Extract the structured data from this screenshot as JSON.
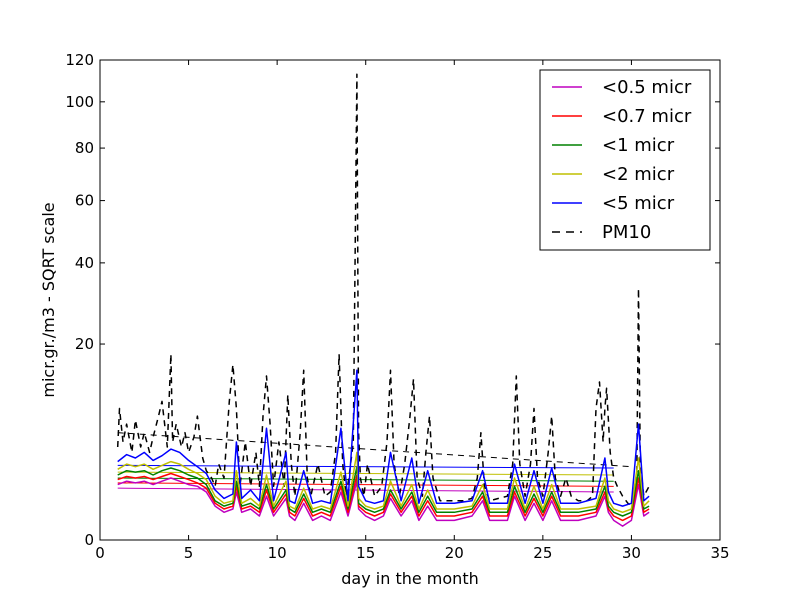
{
  "chart_data": {
    "type": "line",
    "xlabel": "day in the month",
    "ylabel": "micr.gr./m3 - SQRT scale",
    "xlim": [
      0,
      35
    ],
    "ylim": [
      0,
      120
    ],
    "y_scale": "sqrt",
    "x_ticks": [
      0,
      5,
      10,
      15,
      20,
      25,
      30,
      35
    ],
    "y_ticks": [
      0,
      20,
      40,
      60,
      80,
      100,
      120
    ],
    "grid": false,
    "legend_position": "top-right",
    "series": [
      {
        "name": "<0.5 micr",
        "color": "#bf00bf",
        "style": "solid",
        "x": [
          1.0,
          1.5,
          2.0,
          2.5,
          3.0,
          3.5,
          4.0,
          4.5,
          5.0,
          5.5,
          6.0,
          6.5,
          7.0,
          7.5,
          7.7,
          8.0,
          8.5,
          9.0,
          9.4,
          9.8,
          10.5,
          10.7,
          11.0,
          11.5,
          12.0,
          12.5,
          13.0,
          13.6,
          14.0,
          14.5,
          14.6,
          15.0,
          15.5,
          16.0,
          16.4,
          17.0,
          17.6,
          18.0,
          18.5,
          19.0,
          20.0,
          21.0,
          21.6,
          22.0,
          23.0,
          23.4,
          24.0,
          24.5,
          25.0,
          25.5,
          26.0,
          27.0,
          28.0,
          28.5,
          28.7,
          29.0,
          29.5,
          30.0,
          30.4,
          30.7,
          31.0
        ],
        "y": [
          1.6,
          1.8,
          1.7,
          1.8,
          1.6,
          1.8,
          2.0,
          1.8,
          1.6,
          1.5,
          1.2,
          0.6,
          0.4,
          0.5,
          1.2,
          0.4,
          0.5,
          0.3,
          1.0,
          0.3,
          0.9,
          0.3,
          0.2,
          0.7,
          0.2,
          0.3,
          0.2,
          1.2,
          0.3,
          1.8,
          0.5,
          0.3,
          0.2,
          0.3,
          0.9,
          0.3,
          0.8,
          0.2,
          0.6,
          0.2,
          0.2,
          0.3,
          0.8,
          0.2,
          0.2,
          1.0,
          0.2,
          0.7,
          0.2,
          0.8,
          0.2,
          0.2,
          0.3,
          1.0,
          0.4,
          0.2,
          0.1,
          0.2,
          1.6,
          0.3,
          0.4
        ]
      },
      {
        "name": "<0.7 micr",
        "color": "#ff0000",
        "style": "solid",
        "x": [
          1.0,
          1.5,
          2.0,
          2.5,
          3.0,
          3.5,
          4.0,
          4.5,
          5.0,
          5.5,
          6.0,
          6.5,
          7.0,
          7.5,
          7.7,
          8.0,
          8.5,
          9.0,
          9.4,
          9.8,
          10.5,
          10.7,
          11.0,
          11.5,
          12.0,
          12.5,
          13.0,
          13.6,
          14.0,
          14.5,
          14.6,
          15.0,
          15.5,
          16.0,
          16.4,
          17.0,
          17.6,
          18.0,
          18.5,
          19.0,
          20.0,
          21.0,
          21.6,
          22.0,
          23.0,
          23.4,
          24.0,
          24.5,
          25.0,
          25.5,
          26.0,
          27.0,
          28.0,
          28.5,
          28.7,
          29.0,
          29.5,
          30.0,
          30.4,
          30.7,
          31.0
        ],
        "y": [
          1.9,
          2.1,
          2.0,
          2.1,
          1.9,
          2.1,
          2.3,
          2.1,
          1.9,
          1.7,
          1.4,
          0.7,
          0.5,
          0.6,
          1.5,
          0.5,
          0.6,
          0.4,
          1.3,
          0.4,
          1.1,
          0.4,
          0.3,
          0.9,
          0.3,
          0.4,
          0.3,
          1.5,
          0.4,
          2.2,
          0.6,
          0.4,
          0.3,
          0.4,
          1.1,
          0.4,
          1.0,
          0.3,
          0.8,
          0.3,
          0.3,
          0.4,
          1.0,
          0.3,
          0.3,
          1.2,
          0.3,
          0.9,
          0.3,
          1.0,
          0.3,
          0.3,
          0.4,
          1.2,
          0.5,
          0.3,
          0.2,
          0.3,
          2.0,
          0.4,
          0.5
        ]
      },
      {
        "name": "<1 micr",
        "color": "#008000",
        "style": "solid",
        "x": [
          1.0,
          1.5,
          2.0,
          2.5,
          3.0,
          3.5,
          4.0,
          4.5,
          5.0,
          5.5,
          6.0,
          6.5,
          7.0,
          7.5,
          7.7,
          8.0,
          8.5,
          9.0,
          9.4,
          9.8,
          10.5,
          10.7,
          11.0,
          11.5,
          12.0,
          12.5,
          13.0,
          13.6,
          14.0,
          14.5,
          14.6,
          15.0,
          15.5,
          16.0,
          16.4,
          17.0,
          17.6,
          18.0,
          18.5,
          19.0,
          20.0,
          21.0,
          21.6,
          22.0,
          23.0,
          23.4,
          24.0,
          24.5,
          25.0,
          25.5,
          26.0,
          27.0,
          28.0,
          28.5,
          28.7,
          29.0,
          29.5,
          30.0,
          30.4,
          30.7,
          31.0
        ],
        "y": [
          2.2,
          2.5,
          2.4,
          2.5,
          2.2,
          2.5,
          2.7,
          2.5,
          2.2,
          2.0,
          1.6,
          0.8,
          0.6,
          0.7,
          1.8,
          0.6,
          0.7,
          0.5,
          1.6,
          0.5,
          1.3,
          0.5,
          0.4,
          1.1,
          0.4,
          0.5,
          0.4,
          1.8,
          0.5,
          2.8,
          0.7,
          0.5,
          0.4,
          0.5,
          1.3,
          0.5,
          1.2,
          0.4,
          1.0,
          0.4,
          0.4,
          0.5,
          1.2,
          0.4,
          0.4,
          1.5,
          0.4,
          1.1,
          0.4,
          1.2,
          0.4,
          0.4,
          0.5,
          1.5,
          0.6,
          0.4,
          0.3,
          0.4,
          2.5,
          0.5,
          0.6
        ]
      },
      {
        "name": "<2 micr",
        "color": "#bfbf00",
        "style": "solid",
        "x": [
          1.0,
          1.5,
          2.0,
          2.5,
          3.0,
          3.5,
          4.0,
          4.5,
          5.0,
          5.5,
          6.0,
          6.5,
          7.0,
          7.5,
          7.7,
          8.0,
          8.5,
          9.0,
          9.4,
          9.8,
          10.5,
          10.7,
          11.0,
          11.5,
          12.0,
          12.5,
          13.0,
          13.6,
          14.0,
          14.5,
          14.6,
          15.0,
          15.5,
          16.0,
          16.4,
          17.0,
          17.6,
          18.0,
          18.5,
          19.0,
          20.0,
          21.0,
          21.6,
          22.0,
          23.0,
          23.4,
          24.0,
          24.5,
          25.0,
          25.5,
          26.0,
          27.0,
          28.0,
          28.5,
          28.7,
          29.0,
          29.5,
          30.0,
          30.4,
          30.7,
          31.0
        ],
        "y": [
          2.6,
          3.0,
          2.8,
          3.0,
          2.6,
          2.9,
          3.2,
          3.0,
          2.6,
          2.3,
          1.9,
          1.0,
          0.7,
          0.8,
          2.5,
          0.7,
          0.9,
          0.6,
          2.2,
          0.6,
          1.8,
          0.6,
          0.5,
          1.4,
          0.5,
          0.6,
          0.5,
          2.4,
          0.6,
          4.0,
          0.9,
          0.6,
          0.5,
          0.6,
          1.8,
          0.6,
          1.6,
          0.5,
          1.3,
          0.5,
          0.5,
          0.6,
          1.6,
          0.5,
          0.5,
          2.0,
          0.5,
          1.5,
          0.5,
          1.6,
          0.5,
          0.5,
          0.6,
          2.0,
          0.8,
          0.5,
          0.4,
          0.5,
          3.5,
          0.6,
          0.8
        ]
      },
      {
        "name": "<5 micr",
        "color": "#0000ff",
        "style": "solid",
        "x": [
          1.0,
          1.5,
          2.0,
          2.5,
          3.0,
          3.5,
          4.0,
          4.5,
          5.0,
          5.5,
          6.0,
          6.5,
          7.0,
          7.5,
          7.7,
          8.0,
          8.5,
          9.0,
          9.4,
          9.8,
          10.5,
          10.7,
          11.0,
          11.5,
          12.0,
          12.5,
          13.0,
          13.6,
          14.0,
          14.5,
          14.6,
          15.0,
          15.5,
          16.0,
          16.4,
          17.0,
          17.6,
          18.0,
          18.5,
          19.0,
          20.0,
          21.0,
          21.6,
          22.0,
          23.0,
          23.4,
          24.0,
          24.5,
          25.0,
          25.5,
          26.0,
          27.0,
          28.0,
          28.5,
          28.7,
          29.0,
          29.5,
          30.0,
          30.4,
          30.7,
          31.0
        ],
        "y": [
          3.2,
          3.8,
          3.5,
          4.0,
          3.3,
          3.7,
          4.3,
          4.0,
          3.3,
          2.8,
          2.3,
          1.3,
          0.9,
          1.1,
          5.0,
          0.9,
          1.3,
          0.8,
          6.5,
          0.8,
          4.0,
          0.8,
          0.7,
          2.5,
          0.7,
          0.8,
          0.7,
          6.5,
          0.8,
          15.0,
          1.5,
          0.8,
          0.7,
          0.8,
          4.0,
          0.8,
          3.5,
          0.7,
          2.5,
          0.7,
          0.7,
          0.8,
          2.5,
          0.7,
          0.7,
          3.0,
          0.7,
          2.5,
          0.7,
          2.7,
          0.7,
          0.7,
          0.9,
          3.5,
          1.2,
          0.7,
          0.6,
          0.7,
          7.0,
          0.8,
          1.0
        ]
      },
      {
        "name": "PM10",
        "color": "#000000",
        "style": "dashed",
        "x": [
          1.0,
          1.1,
          1.3,
          1.5,
          1.8,
          2.0,
          2.3,
          2.5,
          2.8,
          3.0,
          3.3,
          3.5,
          3.8,
          4.0,
          4.1,
          4.3,
          4.6,
          4.8,
          5.0,
          5.3,
          5.5,
          5.8,
          6.0,
          6.3,
          6.5,
          6.7,
          7.0,
          7.3,
          7.5,
          7.7,
          7.9,
          8.2,
          8.5,
          8.8,
          9.0,
          9.2,
          9.4,
          9.6,
          9.8,
          10.1,
          10.4,
          10.6,
          10.8,
          11.0,
          11.3,
          11.5,
          11.7,
          11.9,
          12.3,
          12.7,
          13.0,
          13.3,
          13.5,
          13.7,
          13.9,
          14.1,
          14.3,
          14.5,
          14.6,
          14.7,
          14.9,
          15.1,
          15.5,
          15.9,
          16.2,
          16.4,
          16.6,
          16.9,
          17.2,
          17.5,
          17.7,
          17.9,
          18.2,
          18.4,
          18.6,
          18.8,
          19.2,
          19.6,
          20.0,
          20.5,
          21.0,
          21.3,
          21.5,
          21.7,
          22.0,
          22.5,
          23.0,
          23.3,
          23.5,
          23.7,
          24.0,
          24.3,
          24.5,
          24.7,
          25.0,
          25.3,
          25.5,
          25.7,
          26.0,
          26.3,
          26.6,
          27.0,
          27.5,
          27.8,
          28.0,
          28.2,
          28.4,
          28.5,
          28.6,
          28.8,
          29.0,
          29.2,
          29.5,
          29.8,
          30.1,
          30.3,
          30.4,
          30.5,
          30.7,
          31.0
        ],
        "y": [
          4.5,
          9.0,
          5.0,
          7.0,
          4.0,
          7.5,
          4.5,
          6.0,
          4.0,
          5.5,
          8.0,
          10.0,
          4.5,
          18.0,
          5.0,
          7.0,
          4.5,
          6.0,
          4.0,
          5.5,
          8.0,
          3.5,
          2.5,
          2.0,
          1.5,
          3.0,
          2.0,
          10.0,
          16.0,
          9.0,
          1.5,
          5.0,
          1.5,
          4.0,
          1.5,
          8.0,
          14.0,
          7.0,
          1.5,
          5.0,
          1.5,
          11.0,
          3.0,
          1.0,
          6.0,
          15.0,
          2.0,
          1.0,
          3.0,
          1.0,
          1.2,
          4.0,
          18.0,
          3.0,
          1.0,
          2.5,
          5.0,
          113.0,
          6.0,
          2.0,
          1.0,
          3.0,
          1.0,
          1.5,
          5.0,
          15.0,
          3.0,
          1.0,
          3.0,
          8.0,
          13.5,
          2.0,
          1.0,
          4.0,
          8.0,
          2.0,
          0.8,
          0.8,
          0.8,
          0.8,
          0.9,
          2.0,
          6.0,
          1.5,
          0.8,
          0.9,
          1.0,
          3.0,
          14.0,
          3.0,
          1.0,
          3.0,
          9.0,
          2.0,
          1.0,
          4.0,
          8.0,
          2.0,
          1.0,
          2.0,
          1.0,
          0.8,
          0.8,
          1.0,
          9.0,
          13.0,
          5.0,
          9.0,
          12.0,
          4.0,
          2.0,
          1.5,
          1.0,
          0.7,
          0.6,
          1.5,
          33.0,
          3.0,
          1.0,
          1.5
        ]
      }
    ],
    "connector_lines": [
      {
        "series": "PM10",
        "x": [
          1.0,
          30.0
        ],
        "y": [
          6.0,
          2.8
        ]
      },
      {
        "series": "<5 micr",
        "x": [
          1.0,
          29.0
        ],
        "y": [
          2.9,
          2.7
        ]
      },
      {
        "series": "<2 micr",
        "x": [
          1.0,
          29.0
        ],
        "y": [
          2.4,
          2.2
        ]
      },
      {
        "series": "<1 micr",
        "x": [
          1.0,
          29.0
        ],
        "y": [
          2.0,
          1.8
        ]
      },
      {
        "series": "<0.7 micr",
        "x": [
          1.0,
          29.0
        ],
        "y": [
          1.7,
          1.5
        ]
      },
      {
        "series": "<0.5 micr",
        "x": [
          1.0,
          29.0
        ],
        "y": [
          1.4,
          1.2
        ]
      }
    ]
  }
}
